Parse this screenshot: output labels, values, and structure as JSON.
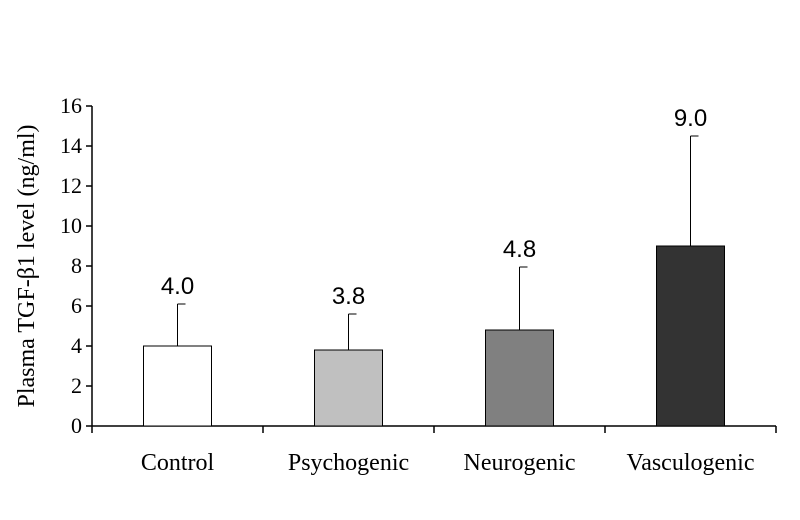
{
  "chart_data": {
    "type": "bar",
    "title": "",
    "xlabel": "",
    "ylabel": "Plasma TGF-β1 level (ng/ml)",
    "ylim": [
      0,
      16
    ],
    "yticks": [
      0,
      2,
      4,
      6,
      8,
      10,
      12,
      14,
      16
    ],
    "categories": [
      "Control",
      "Psychogenic",
      "Neurogenic",
      "Vasculogenic"
    ],
    "values": [
      4.0,
      3.8,
      4.8,
      9.0
    ],
    "value_labels": [
      "4.0",
      "3.8",
      "4.8",
      "9.0"
    ],
    "error_upper": [
      6.1,
      5.6,
      7.95,
      14.5
    ],
    "colors": [
      "#ffffff",
      "#c0c0c0",
      "#808080",
      "#333333"
    ],
    "grid": false,
    "legend": "none"
  }
}
